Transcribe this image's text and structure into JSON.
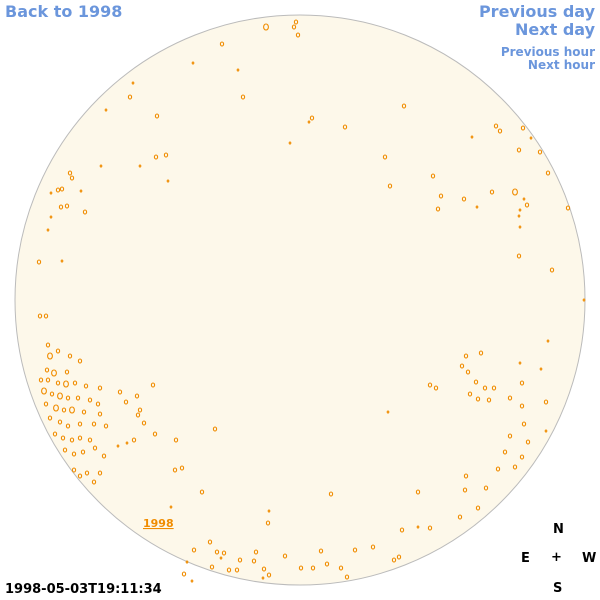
{
  "nav": {
    "back": "Back to 1998",
    "previous_day": "Previous day",
    "next_day": "Next day",
    "previous_hour": "Previous hour",
    "next_hour": "Next hour"
  },
  "timestamp": "1998-05-03T19:11:34",
  "sky_label": "1998",
  "compass": {
    "n": "N",
    "e": "E",
    "center": "+",
    "w": "W",
    "s": "S"
  },
  "colors": {
    "disk_fill": "#fdf8ea",
    "disk_stroke": "#bbbbbb",
    "marks": "#f08c00",
    "nav": "#6b96dc"
  }
}
